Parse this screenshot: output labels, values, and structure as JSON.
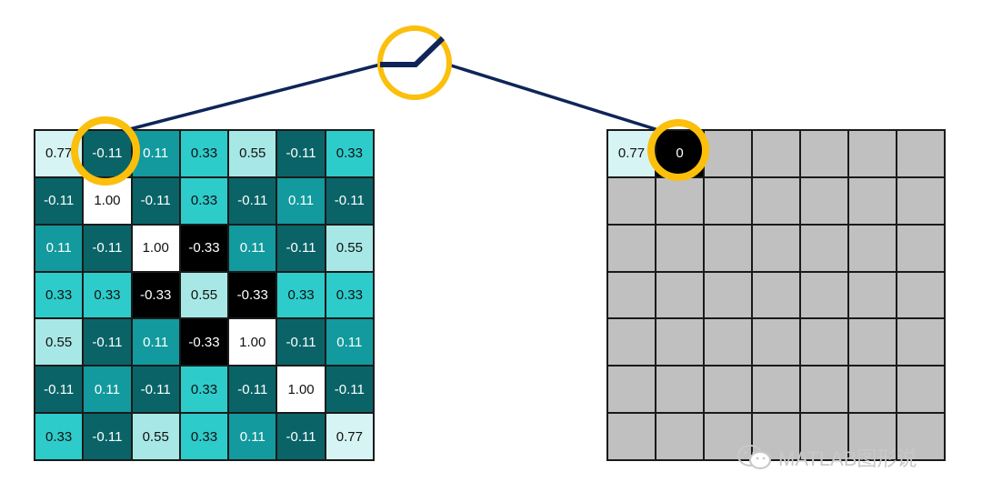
{
  "colors": {
    "dark": "#0a6467",
    "mid": "#129a9e",
    "bright": "#2ecbcb",
    "light": "#a7e8e6",
    "pale": "#d6f4f3",
    "white": "#ffffff",
    "black": "#000000",
    "gray": "#c0c0c0",
    "highlight": "#fbbf0c",
    "connector": "#0f2559"
  },
  "input_grid": {
    "rows": [
      [
        {
          "v": "0.77",
          "c": "pale"
        },
        {
          "v": "-0.11",
          "c": "dark"
        },
        {
          "v": "0.11",
          "c": "mid"
        },
        {
          "v": "0.33",
          "c": "bright"
        },
        {
          "v": "0.55",
          "c": "light"
        },
        {
          "v": "-0.11",
          "c": "dark"
        },
        {
          "v": "0.33",
          "c": "bright"
        }
      ],
      [
        {
          "v": "-0.11",
          "c": "dark"
        },
        {
          "v": "1.00",
          "c": "white"
        },
        {
          "v": "-0.11",
          "c": "dark"
        },
        {
          "v": "0.33",
          "c": "bright"
        },
        {
          "v": "-0.11",
          "c": "dark"
        },
        {
          "v": "0.11",
          "c": "mid"
        },
        {
          "v": "-0.11",
          "c": "dark"
        }
      ],
      [
        {
          "v": "0.11",
          "c": "mid"
        },
        {
          "v": "-0.11",
          "c": "dark"
        },
        {
          "v": "1.00",
          "c": "white"
        },
        {
          "v": "-0.33",
          "c": "black"
        },
        {
          "v": "0.11",
          "c": "mid"
        },
        {
          "v": "-0.11",
          "c": "dark"
        },
        {
          "v": "0.55",
          "c": "light"
        }
      ],
      [
        {
          "v": "0.33",
          "c": "bright"
        },
        {
          "v": "0.33",
          "c": "bright"
        },
        {
          "v": "-0.33",
          "c": "black"
        },
        {
          "v": "0.55",
          "c": "light"
        },
        {
          "v": "-0.33",
          "c": "black"
        },
        {
          "v": "0.33",
          "c": "bright"
        },
        {
          "v": "0.33",
          "c": "bright"
        }
      ],
      [
        {
          "v": "0.55",
          "c": "light"
        },
        {
          "v": "-0.11",
          "c": "dark"
        },
        {
          "v": "0.11",
          "c": "mid"
        },
        {
          "v": "-0.33",
          "c": "black"
        },
        {
          "v": "1.00",
          "c": "white"
        },
        {
          "v": "-0.11",
          "c": "dark"
        },
        {
          "v": "0.11",
          "c": "mid"
        }
      ],
      [
        {
          "v": "-0.11",
          "c": "dark"
        },
        {
          "v": "0.11",
          "c": "mid"
        },
        {
          "v": "-0.11",
          "c": "dark"
        },
        {
          "v": "0.33",
          "c": "bright"
        },
        {
          "v": "-0.11",
          "c": "dark"
        },
        {
          "v": "1.00",
          "c": "white"
        },
        {
          "v": "-0.11",
          "c": "dark"
        }
      ],
      [
        {
          "v": "0.33",
          "c": "bright"
        },
        {
          "v": "-0.11",
          "c": "dark"
        },
        {
          "v": "0.55",
          "c": "light"
        },
        {
          "v": "0.33",
          "c": "bright"
        },
        {
          "v": "0.11",
          "c": "mid"
        },
        {
          "v": "-0.11",
          "c": "dark"
        },
        {
          "v": "0.77",
          "c": "pale"
        }
      ]
    ],
    "highlighted_cell": {
      "row": 0,
      "col": 1
    }
  },
  "output_grid": {
    "rows": [
      [
        {
          "v": "0.77",
          "c": "pale"
        },
        {
          "v": "0",
          "c": "black"
        },
        {
          "v": "",
          "c": "gray"
        },
        {
          "v": "",
          "c": "gray"
        },
        {
          "v": "",
          "c": "gray"
        },
        {
          "v": "",
          "c": "gray"
        },
        {
          "v": "",
          "c": "gray"
        }
      ],
      [
        {
          "v": "",
          "c": "gray"
        },
        {
          "v": "",
          "c": "gray"
        },
        {
          "v": "",
          "c": "gray"
        },
        {
          "v": "",
          "c": "gray"
        },
        {
          "v": "",
          "c": "gray"
        },
        {
          "v": "",
          "c": "gray"
        },
        {
          "v": "",
          "c": "gray"
        }
      ],
      [
        {
          "v": "",
          "c": "gray"
        },
        {
          "v": "",
          "c": "gray"
        },
        {
          "v": "",
          "c": "gray"
        },
        {
          "v": "",
          "c": "gray"
        },
        {
          "v": "",
          "c": "gray"
        },
        {
          "v": "",
          "c": "gray"
        },
        {
          "v": "",
          "c": "gray"
        }
      ],
      [
        {
          "v": "",
          "c": "gray"
        },
        {
          "v": "",
          "c": "gray"
        },
        {
          "v": "",
          "c": "gray"
        },
        {
          "v": "",
          "c": "gray"
        },
        {
          "v": "",
          "c": "gray"
        },
        {
          "v": "",
          "c": "gray"
        },
        {
          "v": "",
          "c": "gray"
        }
      ],
      [
        {
          "v": "",
          "c": "gray"
        },
        {
          "v": "",
          "c": "gray"
        },
        {
          "v": "",
          "c": "gray"
        },
        {
          "v": "",
          "c": "gray"
        },
        {
          "v": "",
          "c": "gray"
        },
        {
          "v": "",
          "c": "gray"
        },
        {
          "v": "",
          "c": "gray"
        }
      ],
      [
        {
          "v": "",
          "c": "gray"
        },
        {
          "v": "",
          "c": "gray"
        },
        {
          "v": "",
          "c": "gray"
        },
        {
          "v": "",
          "c": "gray"
        },
        {
          "v": "",
          "c": "gray"
        },
        {
          "v": "",
          "c": "gray"
        },
        {
          "v": "",
          "c": "gray"
        }
      ],
      [
        {
          "v": "",
          "c": "gray"
        },
        {
          "v": "",
          "c": "gray"
        },
        {
          "v": "",
          "c": "gray"
        },
        {
          "v": "",
          "c": "gray"
        },
        {
          "v": "",
          "c": "gray"
        },
        {
          "v": "",
          "c": "gray"
        },
        {
          "v": "",
          "c": "gray"
        }
      ]
    ],
    "highlighted_cell": {
      "row": 0,
      "col": 1
    }
  },
  "relu_icon": "relu-activation-icon",
  "watermark": {
    "icon": "wechat-icon",
    "text": "MATLAB图形说"
  }
}
